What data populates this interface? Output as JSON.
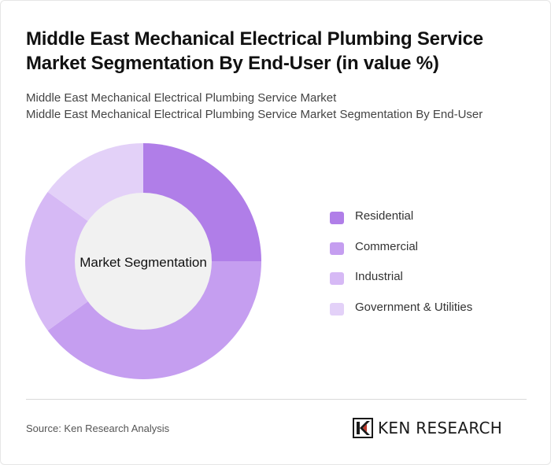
{
  "title": "Middle East Mechanical Electrical Plumbing Service Market Segmentation By End-User (in value %)",
  "subtitle_line1": "Middle East Mechanical Electrical Plumbing Service Market",
  "subtitle_line2": "Middle East Mechanical Electrical Plumbing Service Market Segmentation By End-User",
  "source": "Source: Ken Research Analysis",
  "brand": "KEN RESEARCH",
  "chart_data": {
    "type": "pie",
    "variant": "donut",
    "center_label": "Market Segmentation",
    "categories": [
      "Residential",
      "Commercial",
      "Industrial",
      "Government & Utilities"
    ],
    "values": [
      25,
      40,
      20,
      15
    ],
    "colors": [
      "#b07ee8",
      "#c59ef0",
      "#d6b9f5",
      "#e3d1f8"
    ],
    "legend_position": "right"
  }
}
